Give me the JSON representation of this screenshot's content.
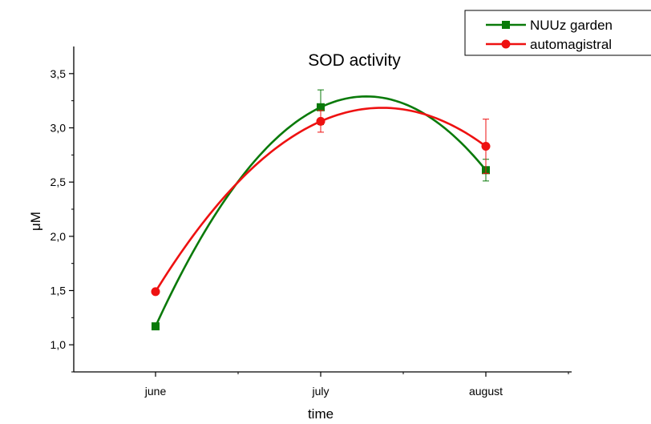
{
  "chart_data": {
    "type": "line",
    "title": "SOD activity",
    "xlabel": "time",
    "ylabel": "μM",
    "categories": [
      "june",
      "july",
      "august"
    ],
    "ylim": [
      0.75,
      3.75
    ],
    "yticks": [
      "1,0",
      "1,5",
      "2,0",
      "2,5",
      "3,0",
      "3,5"
    ],
    "ytick_values": [
      1.0,
      1.5,
      2.0,
      2.5,
      3.0,
      3.5
    ],
    "grid": false,
    "legend_position": "top-right",
    "series": [
      {
        "name": "NUUz garden",
        "color": "#0a7a0a",
        "marker": "square",
        "values": [
          1.17,
          3.19,
          2.61
        ],
        "errors": [
          0,
          0.16,
          0.1
        ]
      },
      {
        "name": "automagistral",
        "color": "#ee1111",
        "marker": "circle",
        "values": [
          1.49,
          3.06,
          2.83
        ],
        "errors": [
          0,
          0.1,
          0.25
        ]
      }
    ]
  }
}
